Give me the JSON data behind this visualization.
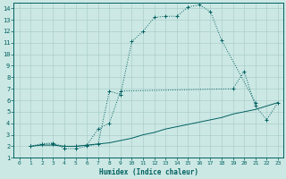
{
  "background_color": "#cce8e4",
  "grid_color": "#aacfcb",
  "line_color": "#006060",
  "xlabel": "Humidex (Indice chaleur)",
  "xlim": [
    -0.5,
    23.5
  ],
  "ylim": [
    1,
    14.5
  ],
  "xticks": [
    0,
    1,
    2,
    3,
    4,
    5,
    6,
    7,
    8,
    9,
    10,
    11,
    12,
    13,
    14,
    15,
    16,
    17,
    18,
    19,
    20,
    21,
    22,
    23
  ],
  "yticks": [
    1,
    2,
    3,
    4,
    5,
    6,
    7,
    8,
    9,
    10,
    11,
    12,
    13,
    14
  ],
  "line1_x": [
    1,
    2,
    3,
    4,
    5,
    6,
    7,
    8,
    9,
    10,
    11,
    12,
    13,
    14,
    15,
    16,
    17,
    18,
    21
  ],
  "line1_y": [
    2,
    2.2,
    2.3,
    1.8,
    1.8,
    2.0,
    2.2,
    6.8,
    6.5,
    11.1,
    12.0,
    13.2,
    13.3,
    13.3,
    14.1,
    14.3,
    13.7,
    11.2,
    5.8
  ],
  "line2_x": [
    1,
    2,
    3,
    4,
    5,
    6,
    7,
    8,
    9,
    19,
    20,
    21,
    22,
    23
  ],
  "line2_y": [
    2,
    2.2,
    2.2,
    2.0,
    2.0,
    2.1,
    3.5,
    4.0,
    6.8,
    7.0,
    8.5,
    5.5,
    4.3,
    5.8
  ],
  "line3_x": [
    1,
    2,
    3,
    4,
    5,
    6,
    7,
    8,
    9,
    10,
    11,
    12,
    13,
    14,
    15,
    16,
    17,
    18,
    19,
    20,
    21,
    22,
    23
  ],
  "line3_y": [
    2,
    2.1,
    2.1,
    2.0,
    2.0,
    2.1,
    2.2,
    2.3,
    2.5,
    2.7,
    3.0,
    3.2,
    3.5,
    3.7,
    3.9,
    4.1,
    4.3,
    4.5,
    4.8,
    5.0,
    5.2,
    5.5,
    5.8
  ]
}
